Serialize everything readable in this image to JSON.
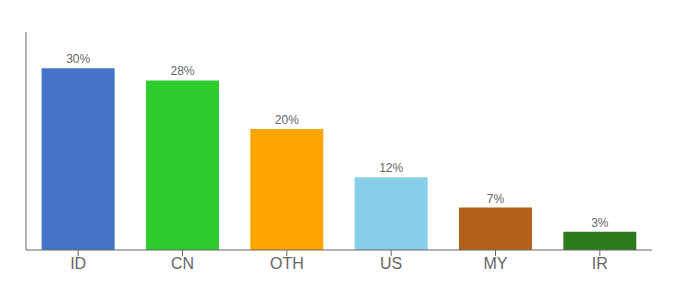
{
  "chart_data": {
    "type": "bar",
    "categories": [
      "ID",
      "CN",
      "OTH",
      "US",
      "MY",
      "IR"
    ],
    "values": [
      30,
      28,
      20,
      12,
      7,
      3
    ],
    "value_labels": [
      "30%",
      "28%",
      "20%",
      "12%",
      "7%",
      "3%"
    ],
    "data_labels": true,
    "colors": [
      "#4472c4",
      "#2ecc2e",
      "#ffa500",
      "#87ceeb",
      "#b5601a",
      "#2d7a1a"
    ],
    "ylim": [
      0,
      36
    ],
    "tick_labels": "x",
    "grid": false
  }
}
